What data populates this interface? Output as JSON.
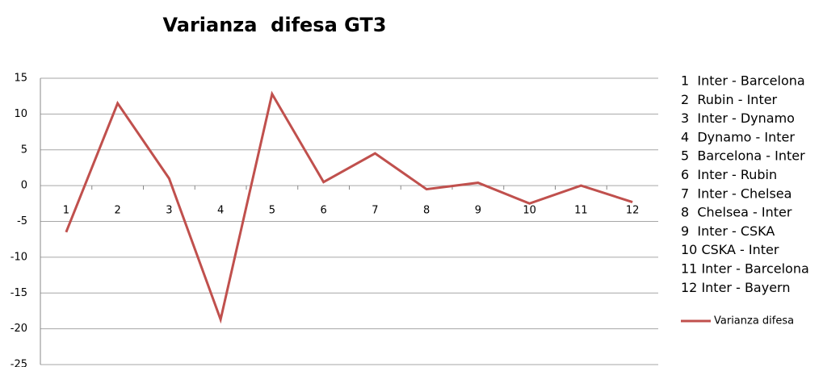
{
  "chart_data": {
    "type": "line",
    "title": "Varianza  difesa GT3",
    "categories": [
      "1",
      "2",
      "3",
      "4",
      "5",
      "6",
      "7",
      "8",
      "9",
      "10",
      "11",
      "12"
    ],
    "series": [
      {
        "name": "Varianza difesa",
        "color": "#c0504d",
        "values": [
          -6.5,
          11.5,
          1,
          -18.7,
          12.8,
          0.5,
          4.5,
          -0.5,
          0.4,
          -2.5,
          0,
          -2.3
        ]
      }
    ],
    "ylim": [
      -25,
      15
    ],
    "yticks": [
      -25,
      -20,
      -15,
      -10,
      -5,
      0,
      5,
      10,
      15
    ],
    "grid": true,
    "annotations": [
      "1  Inter - Barcelona",
      "2  Rubin - Inter",
      "3  Inter - Dynamo",
      "4  Dynamo - Inter",
      "5  Barcelona - Inter",
      "6  Inter - Rubin",
      "7  Inter - Chelsea",
      "8  Chelsea - Inter",
      "9  Inter - CSKA",
      "10 CSKA - Inter",
      "11 Inter - Barcelona",
      "12 Inter - Bayern"
    ]
  }
}
